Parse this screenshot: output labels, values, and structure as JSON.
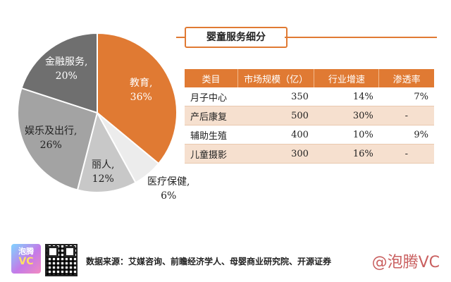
{
  "chart_data": [
    {
      "type": "pie",
      "slices": [
        {
          "name": "教育",
          "label": "教育,",
          "value": 36,
          "pct_text": "36%",
          "color": "#e07a33"
        },
        {
          "name": "医疗保健",
          "label": "医疗保健,",
          "value": 6,
          "pct_text": "6%",
          "color": "#ececec"
        },
        {
          "name": "丽人",
          "label": "丽人,",
          "value": 12,
          "pct_text": "12%",
          "color": "#c8c8c8"
        },
        {
          "name": "娱乐及出行",
          "label": "娱乐及出行,",
          "value": 26,
          "pct_text": "26%",
          "color": "#a3a3a3"
        },
        {
          "name": "金融服务",
          "label": "金融服务,",
          "value": 20,
          "pct_text": "20%",
          "color": "#6f6f6f"
        }
      ]
    },
    {
      "type": "table",
      "title": "婴童服务细分",
      "columns": [
        "类目",
        "市场规模（亿）",
        "行业增速",
        "渗透率"
      ],
      "rows": [
        [
          "月子中心",
          "350",
          "14%",
          "7%"
        ],
        [
          "产后康复",
          "500",
          "30%",
          "-"
        ],
        [
          "辅助生殖",
          "400",
          "10%",
          "9%"
        ],
        [
          "儿童摄影",
          "300",
          "16%",
          "-"
        ]
      ]
    }
  ],
  "footer": {
    "logo_top": "泡腾",
    "logo_bottom": "VC",
    "source": "数据来源：艾媒咨询、前瞻经济学人、母婴商业研究院、开源证券",
    "watermark": "@泡腾VC"
  },
  "colors": {
    "accent": "#e07a33",
    "row_alt": "#f6e0cf"
  }
}
